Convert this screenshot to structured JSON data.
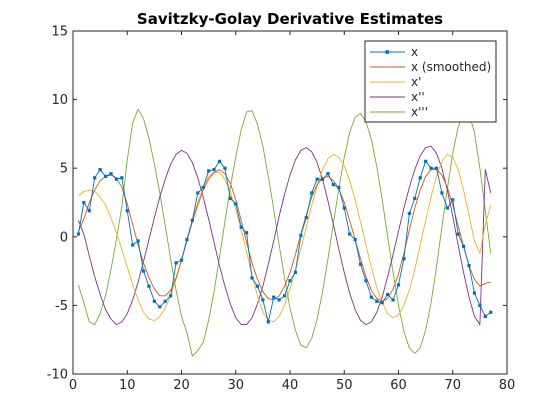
{
  "chart_data": {
    "type": "line",
    "title": "Savitzky-Golay Derivative Estimates",
    "xlabel": "",
    "ylabel": "",
    "xlim": [
      0,
      80
    ],
    "ylim": [
      -10,
      15
    ],
    "x_ticks": [
      0,
      10,
      20,
      30,
      40,
      50,
      60,
      70,
      80
    ],
    "y_ticks": [
      -10,
      -5,
      0,
      5,
      10,
      15
    ],
    "x_tick_labels": [
      "0",
      "10",
      "20",
      "30",
      "40",
      "50",
      "60",
      "70",
      "80"
    ],
    "y_tick_labels": [
      "-10",
      "-5",
      "0",
      "5",
      "10",
      "15"
    ],
    "grid": false,
    "legend_position": "top-right",
    "x_start": 1,
    "x_step": 1,
    "series": [
      {
        "name": "x",
        "color": "#0072BD",
        "marker": "square",
        "values": [
          0.2,
          2.5,
          1.9,
          4.3,
          4.9,
          4.4,
          4.6,
          4.2,
          4.3,
          1.9,
          -0.6,
          -0.3,
          -2.5,
          -3.6,
          -4.7,
          -5.1,
          -4.7,
          -4.3,
          -1.9,
          -1.7,
          -0.2,
          1.2,
          3.2,
          3.6,
          4.8,
          4.9,
          5.5,
          5.0,
          2.8,
          2.4,
          0.7,
          0.3,
          -3.0,
          -3.6,
          -4.6,
          -6.2,
          -4.4,
          -4.6,
          -4.3,
          -3.2,
          -2.6,
          0.1,
          1.4,
          3.2,
          4.2,
          4.2,
          4.6,
          3.8,
          3.6,
          2.1,
          0.2,
          -0.2,
          -2.0,
          -3.2,
          -4.4,
          -4.7,
          -4.8,
          -4.2,
          -4.6,
          -3.5,
          -1.6,
          1.7,
          2.8,
          4.3,
          5.5,
          5.0,
          5.0,
          3.2,
          2.1,
          2.7,
          0.2,
          -0.7,
          -2.1,
          -4.1,
          -5.0,
          -5.8,
          -5.5
        ]
      },
      {
        "name": "x (smoothed)",
        "color": "#D95319",
        "values": [
          0.4,
          1.3,
          2.5,
          3.4,
          4.1,
          4.4,
          4.5,
          4.3,
          3.6,
          2.4,
          0.9,
          -0.6,
          -1.9,
          -3.0,
          -3.8,
          -4.3,
          -4.3,
          -3.9,
          -3.0,
          -1.7,
          -0.3,
          1.1,
          2.3,
          3.4,
          4.2,
          4.7,
          4.9,
          4.6,
          3.9,
          2.7,
          1.2,
          -0.4,
          -1.9,
          -3.1,
          -4.0,
          -4.5,
          -4.6,
          -4.3,
          -3.6,
          -2.6,
          -1.3,
          0.2,
          1.6,
          2.9,
          3.8,
          4.3,
          4.4,
          4.1,
          3.5,
          2.5,
          1.2,
          -0.2,
          -1.6,
          -2.9,
          -3.9,
          -4.5,
          -4.7,
          -4.5,
          -3.8,
          -2.7,
          -1.2,
          0.5,
          2.1,
          3.4,
          4.4,
          4.9,
          4.9,
          4.5,
          3.6,
          2.3,
          0.8,
          -0.7,
          -2.1,
          -3.1,
          -3.6,
          -3.4,
          -3.3
        ]
      },
      {
        "name": "x'",
        "color": "#EDB120",
        "values": [
          3.0,
          3.3,
          3.4,
          3.3,
          2.9,
          2.3,
          1.4,
          0.3,
          -0.9,
          -2.2,
          -3.5,
          -4.6,
          -5.5,
          -6.0,
          -6.1,
          -5.8,
          -5.2,
          -4.3,
          -3.1,
          -1.7,
          -0.3,
          1.2,
          2.5,
          3.6,
          4.4,
          4.7,
          4.7,
          4.2,
          3.3,
          2.0,
          0.5,
          -1.1,
          -2.8,
          -4.3,
          -5.5,
          -6.1,
          -6.2,
          -5.8,
          -5.0,
          -3.8,
          -2.4,
          -0.9,
          0.7,
          2.3,
          3.7,
          4.9,
          5.7,
          6.0,
          5.8,
          5.2,
          4.1,
          2.7,
          1.1,
          -0.6,
          -2.2,
          -3.7,
          -4.8,
          -5.6,
          -5.9,
          -5.7,
          -5.0,
          -3.9,
          -2.4,
          -0.6,
          1.2,
          2.9,
          4.4,
          5.5,
          6.0,
          5.8,
          4.9,
          3.4,
          1.6,
          -0.3,
          -1.2,
          0.9,
          2.3
        ]
      },
      {
        "name": "x''",
        "color": "#7E2F8E",
        "values": [
          1.2,
          0.2,
          -1.4,
          -2.9,
          -4.2,
          -5.3,
          -6.0,
          -6.4,
          -6.2,
          -5.6,
          -4.6,
          -3.3,
          -1.8,
          -0.2,
          1.4,
          2.9,
          4.2,
          5.3,
          6.0,
          6.3,
          6.1,
          5.4,
          4.3,
          2.9,
          1.3,
          -0.4,
          -2.1,
          -3.6,
          -4.9,
          -5.9,
          -6.4,
          -6.4,
          -5.9,
          -4.9,
          -3.6,
          -2.0,
          -0.3,
          1.5,
          3.1,
          4.5,
          5.6,
          6.3,
          6.5,
          6.2,
          5.4,
          4.2,
          2.6,
          0.9,
          -0.9,
          -2.6,
          -4.1,
          -5.3,
          -6.1,
          -6.4,
          -6.2,
          -5.5,
          -4.4,
          -2.9,
          -1.3,
          0.4,
          2.1,
          3.6,
          4.9,
          5.9,
          6.5,
          6.6,
          6.1,
          5.0,
          3.4,
          1.5,
          -0.6,
          -2.6,
          -4.4,
          -5.8,
          -6.4,
          4.9,
          3.2
        ]
      },
      {
        "name": "x'''",
        "color": "#77AC30",
        "values": [
          -3.5,
          -4.8,
          -6.2,
          -6.4,
          -5.6,
          -4.3,
          -2.4,
          -0.2,
          2.2,
          5.6,
          8.3,
          9.3,
          8.6,
          7.2,
          5.3,
          3.2,
          0.8,
          -1.6,
          -3.9,
          -5.8,
          -7.0,
          -8.7,
          -8.3,
          -7.7,
          -6.1,
          -4.0,
          -1.5,
          1.1,
          3.6,
          5.8,
          7.8,
          9.1,
          9.2,
          8.2,
          6.6,
          4.4,
          2.0,
          -0.6,
          -3.0,
          -5.2,
          -6.8,
          -7.9,
          -8.1,
          -7.4,
          -6.0,
          -4.0,
          -1.6,
          1.0,
          3.5,
          5.8,
          7.6,
          8.7,
          9.0,
          8.4,
          7.1,
          5.1,
          2.7,
          0.0,
          -2.6,
          -5.0,
          -6.9,
          -8.1,
          -8.5,
          -8.1,
          -6.8,
          -4.8,
          -2.2,
          0.7,
          3.5,
          6.1,
          8.0,
          9.1,
          9.0,
          7.6,
          5.0,
          1.9,
          -1.2
        ]
      }
    ]
  }
}
